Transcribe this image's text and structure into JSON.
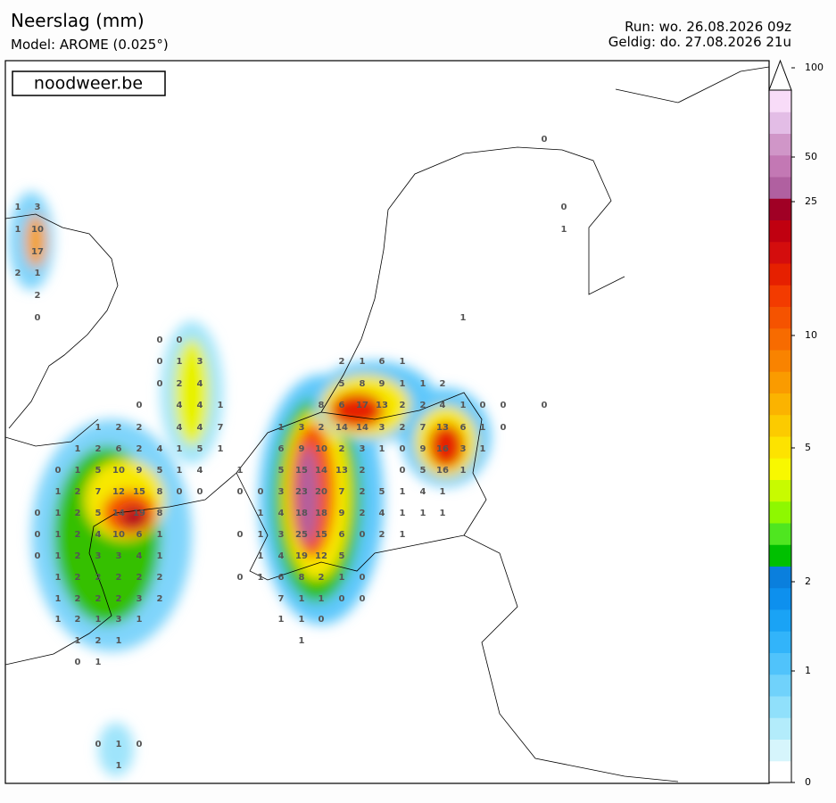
{
  "header": {
    "title": "Neerslag (mm)",
    "model": "Model: AROME (0.025°)",
    "run": "Run: wo. 26.08.2026 09z",
    "valid": "Geldig: do. 27.08.2026 21u"
  },
  "watermark": "noodweer.be",
  "colorbar": {
    "ticks": [
      0,
      1,
      2,
      5,
      10,
      25,
      50,
      100
    ],
    "colors": [
      "#ffffff",
      "#d6f5fc",
      "#b3ecfb",
      "#90e0fb",
      "#70d2fb",
      "#50c3fb",
      "#32b4fa",
      "#1aa3f5",
      "#0d90ee",
      "#0a7fdd",
      "#00c000",
      "#4fe620",
      "#8ef800",
      "#c8fb00",
      "#f8f800",
      "#fde300",
      "#fccb00",
      "#fbb300",
      "#fa9b00",
      "#f98300",
      "#f76b00",
      "#f55300",
      "#f33b00",
      "#e62000",
      "#d40d0d",
      "#c00010",
      "#a00025",
      "#b060a0",
      "#c378b4",
      "#d096c8",
      "#e3bde6",
      "#f8dcf8"
    ]
  },
  "station_rows": [
    [
      0
    ],
    [
      1,
      3,
      0
    ],
    [
      1,
      10,
      1
    ],
    [
      17
    ],
    [
      2,
      1
    ],
    [
      2
    ],
    [
      0,
      1
    ],
    [
      0,
      0
    ],
    [
      0,
      1,
      3,
      2,
      1,
      6,
      1
    ],
    [
      0,
      2,
      4,
      5,
      8,
      9,
      1,
      1,
      2
    ],
    [
      0,
      4,
      4,
      1,
      8,
      6,
      17,
      13,
      2,
      2,
      4,
      1,
      0,
      0,
      0
    ],
    [
      1,
      2,
      2,
      4,
      4,
      7,
      1,
      3,
      2,
      14,
      14,
      3,
      2,
      7,
      13,
      6,
      1,
      0
    ],
    [
      1,
      2,
      6,
      2,
      4,
      1,
      5,
      1,
      6,
      9,
      10,
      2,
      3,
      1,
      0,
      9,
      16,
      3,
      1
    ],
    [
      0,
      1,
      5,
      10,
      9,
      5,
      1,
      4,
      1,
      5,
      15,
      14,
      13,
      2,
      0,
      5,
      16,
      1
    ],
    [
      1,
      2,
      7,
      12,
      15,
      8,
      0,
      0,
      0,
      0,
      3,
      23,
      20,
      7,
      2,
      5,
      1,
      4,
      1
    ],
    [
      0,
      1,
      2,
      5,
      14,
      19,
      8,
      1,
      4,
      18,
      18,
      9,
      2,
      4,
      1,
      1,
      1
    ],
    [
      0,
      1,
      2,
      4,
      10,
      6,
      1,
      0,
      1,
      3,
      25,
      15,
      6,
      0,
      2,
      1
    ],
    [
      0,
      1,
      2,
      3,
      3,
      4,
      1,
      1,
      4,
      19,
      12,
      5
    ],
    [
      1,
      2,
      2,
      2,
      2,
      2,
      0,
      1,
      6,
      8,
      2,
      1,
      0
    ],
    [
      1,
      2,
      2,
      2,
      3,
      2,
      7,
      1,
      1,
      0,
      0
    ],
    [
      1,
      2,
      1,
      3,
      1,
      1,
      1,
      0
    ],
    [
      1,
      2,
      1,
      1
    ],
    [
      0,
      1
    ],
    [
      0,
      1,
      0
    ],
    [
      1
    ]
  ]
}
